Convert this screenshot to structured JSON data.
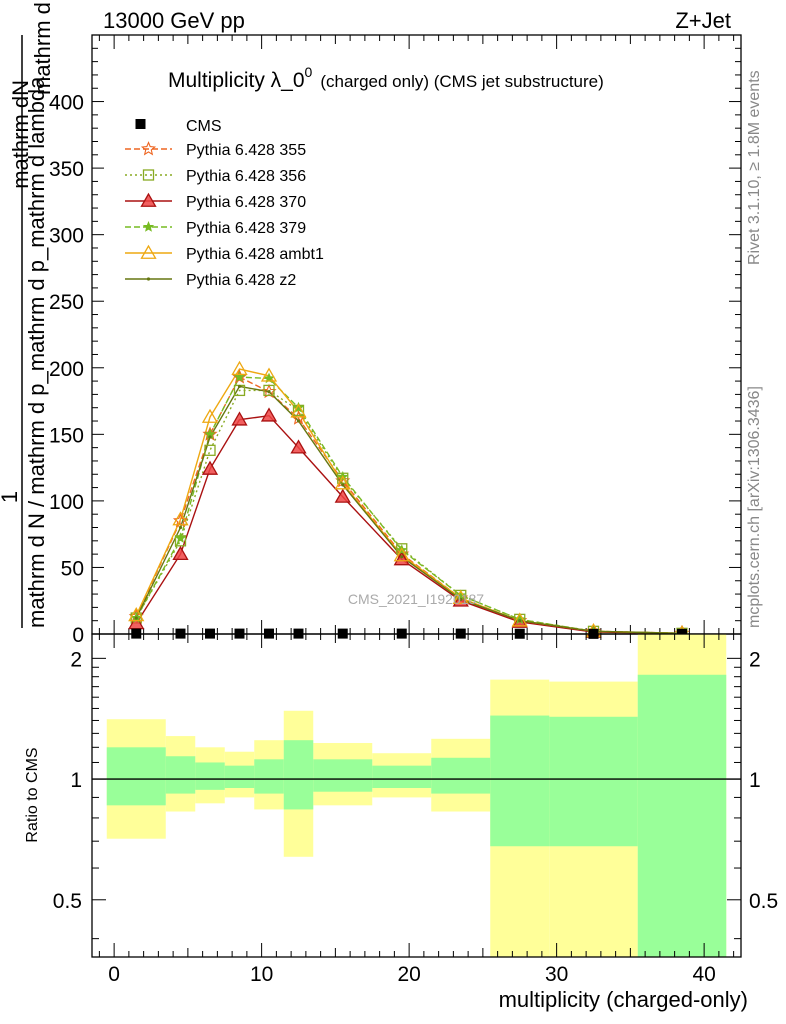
{
  "header": {
    "energy": "13000 GeV pp",
    "process": "Z+Jet"
  },
  "side": {
    "rivet": "Rivet 3.1.10, ≥ 1.8M events",
    "mcplots": "mcplots.cern.ch [arXiv:1306.3436]"
  },
  "watermark": "CMS_2021_I1920187",
  "chart_data": [
    {
      "type": "line",
      "title_main": "Multiplicity λ_0",
      "title_sup": "0",
      "title_sub": "(charged only) (CMS jet substructure)",
      "ylabel_top": "1",
      "ylabel_num": "mathrm dN",
      "ylabel_mid": "mathrm d p_mathrm d p_mathrm d lambda",
      "ylabel_den": "mathrm d N / mathrm d p_mathrm d p_mathrm d lambda",
      "ylim": [
        0,
        450
      ],
      "yticks": [
        0,
        50,
        100,
        150,
        200,
        250,
        300,
        350,
        400
      ],
      "xlim": [
        -1.5,
        42.5
      ],
      "legend_position": "top-left",
      "cms": {
        "name": "CMS",
        "x": [
          1.5,
          4.5,
          6.5,
          8.5,
          10.5,
          12.5,
          15.5,
          19.5,
          23.5,
          27.5,
          32.5,
          38.5
        ],
        "y": [
          0.3,
          0.3,
          0.3,
          0.3,
          0.3,
          0.3,
          0.3,
          0.3,
          0.3,
          0.2,
          0.1,
          0.1
        ]
      },
      "series": [
        {
          "name": "Pythia 6.428 355",
          "color": "#ee6622",
          "dash": "6,3",
          "marker": "star",
          "y": [
            13,
            85,
            150,
            193,
            182,
            162,
            115,
            60,
            27,
            10,
            2,
            0.5
          ]
        },
        {
          "name": "Pythia 6.428 356",
          "color": "#88aa22",
          "dash": "2,3",
          "marker": "square",
          "y": [
            12,
            70,
            138,
            183,
            183,
            168,
            117,
            64,
            29,
            11,
            2,
            0.5
          ]
        },
        {
          "name": "Pythia 6.428 370",
          "color": "#aa1111",
          "dash": "",
          "marker": "triangle",
          "y": [
            8,
            60,
            124,
            161,
            164,
            140,
            103,
            56,
            25,
            9,
            1.5,
            0.5
          ]
        },
        {
          "name": "Pythia 6.428 379",
          "color": "#77bb22",
          "dash": "6,3",
          "marker": "smallstar",
          "y": [
            12,
            72,
            150,
            193,
            192,
            170,
            118,
            63,
            29,
            11,
            2,
            0.5
          ]
        },
        {
          "name": "Pythia 6.428 ambt1",
          "color": "#eea811",
          "dash": "",
          "marker": "triangle",
          "y": [
            14,
            86,
            163,
            199,
            194,
            167,
            113,
            59,
            27,
            10,
            2,
            0.5
          ]
        },
        {
          "name": "Pythia 6.428 z2",
          "color": "#667711",
          "dash": "",
          "marker": "dot",
          "y": [
            12,
            80,
            148,
            186,
            182,
            160,
            112,
            58,
            26,
            10,
            2,
            0.5
          ]
        }
      ]
    },
    {
      "type": "area",
      "ylabel": "Ratio to CMS",
      "xlabel": "multiplicity (charged-only)",
      "ylim": [
        0.36,
        2.3
      ],
      "yticks": [
        0.5,
        1,
        2
      ],
      "ytick_labels": [
        "0.5",
        "1",
        "2"
      ],
      "xticks": [
        0,
        10,
        20,
        30,
        40
      ],
      "band_colors": {
        "inner": "#99ff99",
        "outer": "#ffff99"
      },
      "bins": [
        {
          "lo": -0.5,
          "hi": 3.5,
          "inner": [
            0.86,
            1.2
          ],
          "outer": [
            0.71,
            1.41
          ]
        },
        {
          "lo": 3.5,
          "hi": 5.5,
          "inner": [
            0.92,
            1.14
          ],
          "outer": [
            0.83,
            1.28
          ]
        },
        {
          "lo": 5.5,
          "hi": 7.5,
          "inner": [
            0.94,
            1.1
          ],
          "outer": [
            0.87,
            1.2
          ]
        },
        {
          "lo": 7.5,
          "hi": 9.5,
          "inner": [
            0.95,
            1.08
          ],
          "outer": [
            0.9,
            1.17
          ]
        },
        {
          "lo": 9.5,
          "hi": 11.5,
          "inner": [
            0.92,
            1.12
          ],
          "outer": [
            0.84,
            1.25
          ]
        },
        {
          "lo": 11.5,
          "hi": 13.5,
          "inner": [
            0.84,
            1.25
          ],
          "outer": [
            0.64,
            1.48
          ]
        },
        {
          "lo": 13.5,
          "hi": 17.5,
          "inner": [
            0.93,
            1.12
          ],
          "outer": [
            0.86,
            1.23
          ]
        },
        {
          "lo": 17.5,
          "hi": 21.5,
          "inner": [
            0.95,
            1.08
          ],
          "outer": [
            0.9,
            1.16
          ]
        },
        {
          "lo": 21.5,
          "hi": 25.5,
          "inner": [
            0.92,
            1.13
          ],
          "outer": [
            0.83,
            1.26
          ]
        },
        {
          "lo": 25.5,
          "hi": 29.5,
          "inner": [
            0.68,
            1.44
          ],
          "outer": [
            0.36,
            1.77
          ]
        },
        {
          "lo": 29.5,
          "hi": 35.5,
          "inner": [
            0.68,
            1.43
          ],
          "outer": [
            0.36,
            1.75
          ]
        },
        {
          "lo": 35.5,
          "hi": 41.5,
          "inner": [
            0.36,
            1.82
          ],
          "outer": [
            0.36,
            2.3
          ]
        }
      ]
    }
  ]
}
